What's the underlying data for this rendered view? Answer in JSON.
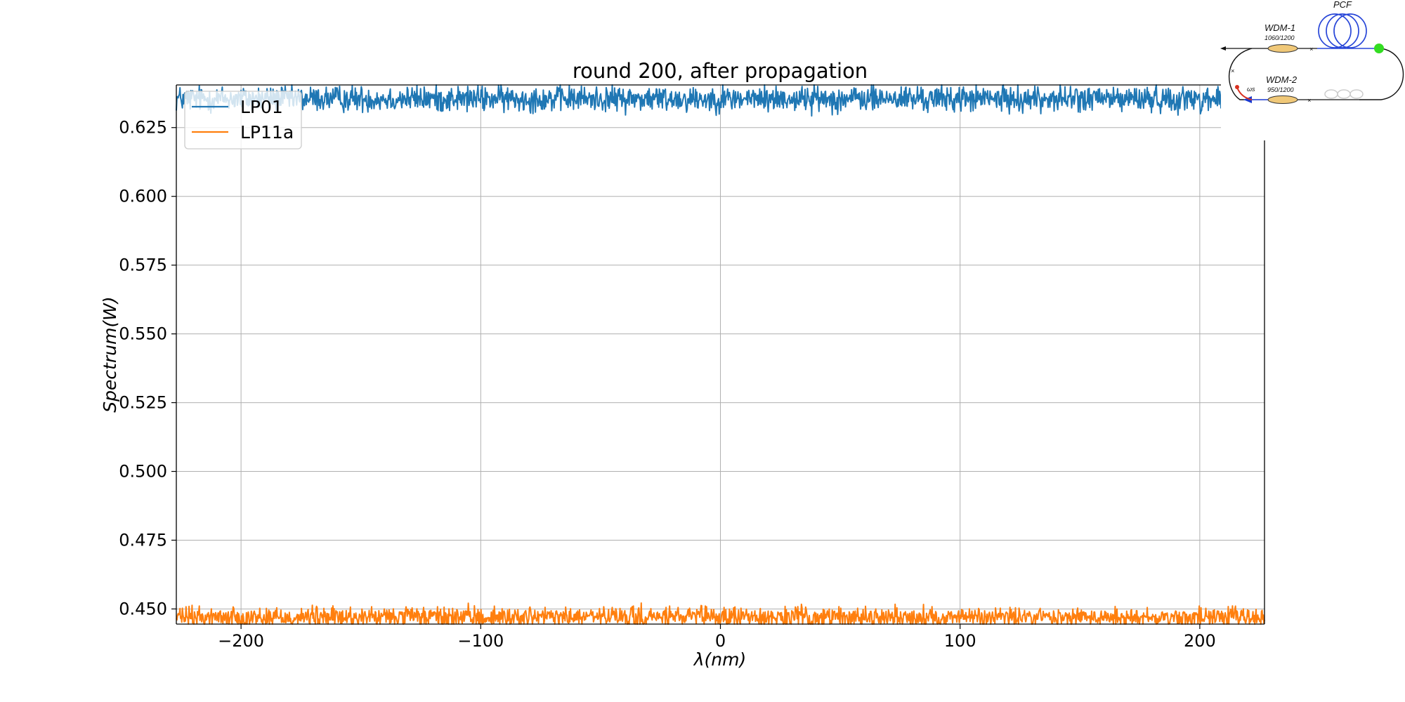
{
  "chart_data": {
    "type": "line",
    "title": "round 200, after propagation",
    "xlabel": "λ(nm)",
    "ylabel": "Spectrum(W)",
    "xlim": [
      -227,
      227
    ],
    "ylim": [
      0.4445,
      0.6405
    ],
    "xticks": [
      -200,
      -100,
      0,
      100,
      200
    ],
    "xtick_labels": [
      "−200",
      "−100",
      "0",
      "100",
      "200"
    ],
    "yticks": [
      0.45,
      0.475,
      0.5,
      0.525,
      0.55,
      0.575,
      0.6,
      0.625
    ],
    "ytick_labels": [
      "0.450",
      "0.475",
      "0.500",
      "0.525",
      "0.550",
      "0.575",
      "0.600",
      "0.625"
    ],
    "grid": true,
    "legend_position": "upper-left",
    "series": [
      {
        "name": "LP01",
        "color": "#1f77b4",
        "mean": 0.6355,
        "noise_amplitude": 0.0035,
        "x_range": [
          -227,
          227
        ]
      },
      {
        "name": "LP11a",
        "color": "#ff7f0e",
        "mean": 0.447,
        "noise_amplitude": 0.0028,
        "x_range": [
          -227,
          227
        ]
      }
    ]
  },
  "inset_diagram": {
    "labels": {
      "pcf": "PCF",
      "wdm1": "WDM-1",
      "wdm1_spec": "1060/1200",
      "wdm2": "WDM-2",
      "wdm2_spec": "950/1200",
      "omega": "ωs"
    },
    "colors": {
      "coil": "#2846d8",
      "node": "#33dd22",
      "coupler": "#f0c878",
      "arrow_blue": "#1a3ad0",
      "arrow_red": "#d83020"
    }
  }
}
